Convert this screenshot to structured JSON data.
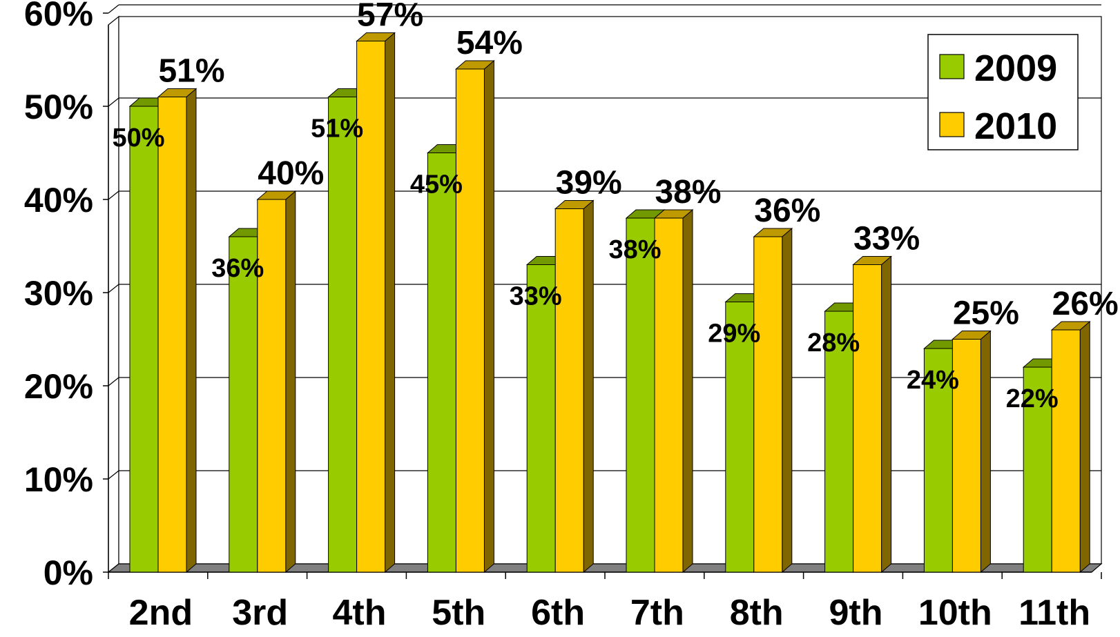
{
  "chart_data": {
    "type": "bar",
    "categories": [
      "2nd",
      "3rd",
      "4th",
      "5th",
      "6th",
      "7th",
      "8th",
      "9th",
      "10th",
      "11th"
    ],
    "series": [
      {
        "name": "2009",
        "color": "#99CC00",
        "values": [
          50,
          36,
          51,
          45,
          33,
          38,
          29,
          28,
          24,
          22
        ],
        "labels": [
          "50%",
          "36%",
          "51%",
          "45%",
          "33%",
          "38%",
          "29%",
          "28%",
          "24%",
          "22%"
        ]
      },
      {
        "name": "2010",
        "color": "#FFCC00",
        "values": [
          51,
          40,
          57,
          54,
          39,
          38,
          36,
          33,
          25,
          26
        ],
        "labels": [
          "51%",
          "40%",
          "57%",
          "54%",
          "39%",
          "38%",
          "36%",
          "33%",
          "25%",
          "26%"
        ]
      }
    ],
    "y_ticks": [
      "0%",
      "10%",
      "20%",
      "30%",
      "40%",
      "50%",
      "60%"
    ],
    "ylim": [
      0,
      60
    ],
    "y_unit": "%",
    "grid": true,
    "legend_position": "top-right",
    "style": "3d-clustered-column"
  }
}
